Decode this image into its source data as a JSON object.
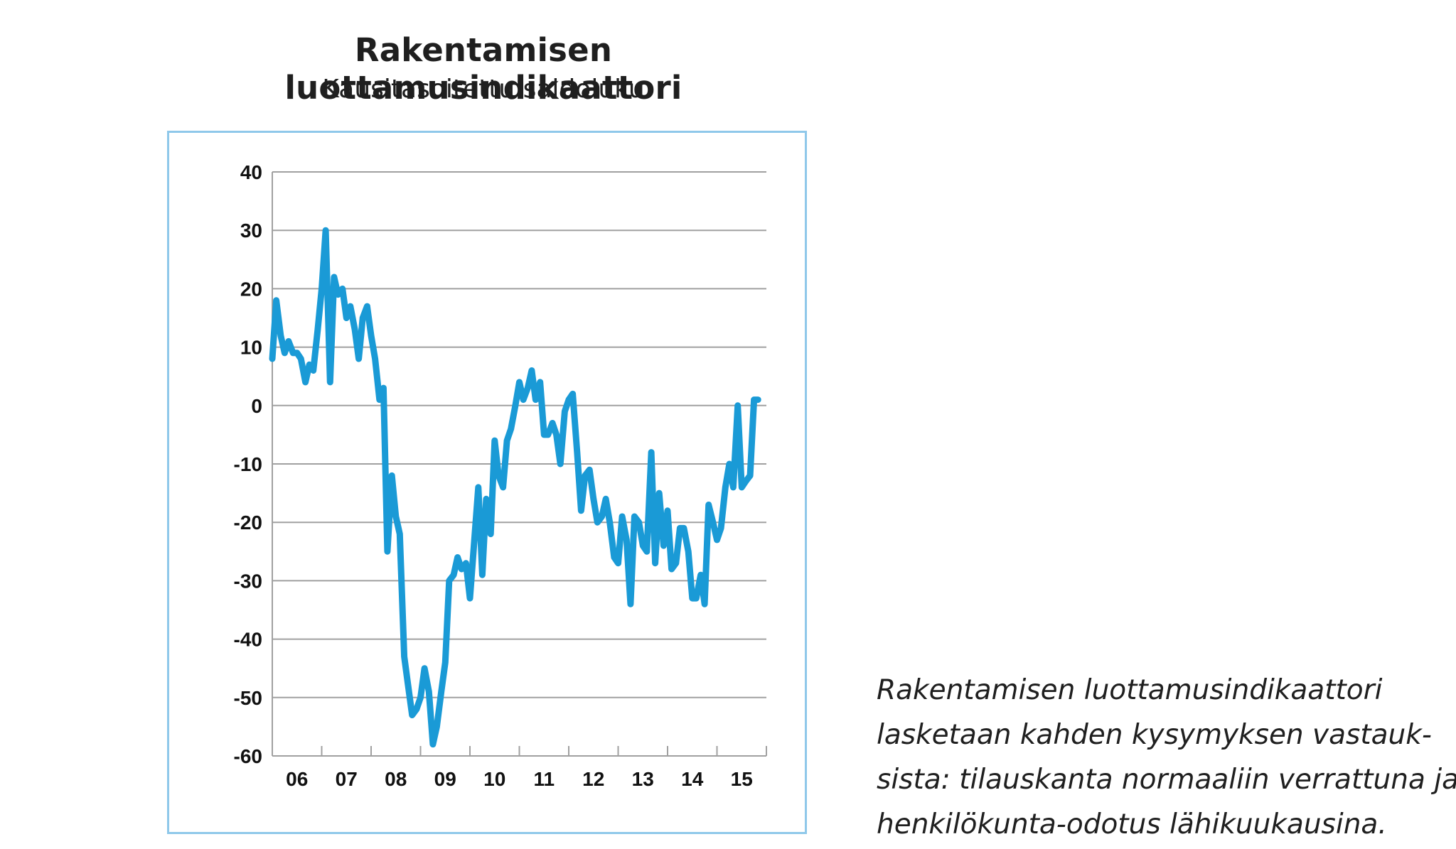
{
  "title": "Rakentamisen luottamusindikaattori",
  "subtitle": "Kausitasoitettu saldoluku",
  "caption_lines": [
    "Rakentamisen luottamusindikaattori",
    "lasketaan kahden kysymyksen vastauk-",
    "sista: tilauskanta normaaliin verrattuna ja",
    "henkilökunta-odotus lähikuukausina."
  ],
  "colors": {
    "line": "#1a9ad6",
    "grid": "#a0a0a0",
    "panel_border": "#8fc8ea"
  },
  "chart_data": {
    "type": "line",
    "title": "Rakentamisen luottamusindikaattori",
    "subtitle": "Kausitasoitettu saldoluku",
    "xlabel": "",
    "ylabel": "",
    "ylim": [
      -60,
      40
    ],
    "yticks": [
      40,
      30,
      20,
      10,
      0,
      -10,
      -20,
      -30,
      -40,
      -50,
      -60
    ],
    "xlim": [
      2006.0,
      2016.0
    ],
    "xtick_labels": [
      "06",
      "07",
      "08",
      "09",
      "10",
      "11",
      "12",
      "13",
      "14",
      "15"
    ],
    "grid": true,
    "series": [
      {
        "color": "#1a9ad6",
        "points": [
          [
            2006.0,
            8
          ],
          [
            2006.08,
            18
          ],
          [
            2006.17,
            12
          ],
          [
            2006.25,
            9
          ],
          [
            2006.33,
            11
          ],
          [
            2006.42,
            9
          ],
          [
            2006.5,
            9
          ],
          [
            2006.58,
            8
          ],
          [
            2006.67,
            4
          ],
          [
            2006.75,
            7
          ],
          [
            2006.83,
            6
          ],
          [
            2006.92,
            13
          ],
          [
            2007.0,
            20
          ],
          [
            2007.08,
            30
          ],
          [
            2007.17,
            4
          ],
          [
            2007.25,
            22
          ],
          [
            2007.33,
            19
          ],
          [
            2007.42,
            20
          ],
          [
            2007.5,
            15
          ],
          [
            2007.58,
            17
          ],
          [
            2007.67,
            13
          ],
          [
            2007.75,
            8
          ],
          [
            2007.83,
            15
          ],
          [
            2007.92,
            17
          ],
          [
            2008.0,
            12
          ],
          [
            2008.08,
            8
          ],
          [
            2008.17,
            1
          ],
          [
            2008.25,
            3
          ],
          [
            2008.33,
            -25
          ],
          [
            2008.42,
            -12
          ],
          [
            2008.5,
            -19
          ],
          [
            2008.58,
            -22
          ],
          [
            2008.67,
            -43
          ],
          [
            2008.75,
            -48
          ],
          [
            2008.83,
            -53
          ],
          [
            2008.92,
            -52
          ],
          [
            2009.0,
            -50
          ],
          [
            2009.08,
            -45
          ],
          [
            2009.17,
            -49
          ],
          [
            2009.25,
            -58
          ],
          [
            2009.33,
            -55
          ],
          [
            2009.42,
            -49
          ],
          [
            2009.5,
            -44
          ],
          [
            2009.58,
            -30
          ],
          [
            2009.67,
            -29
          ],
          [
            2009.75,
            -26
          ],
          [
            2009.83,
            -28
          ],
          [
            2009.92,
            -27
          ],
          [
            2010.0,
            -33
          ],
          [
            2010.08,
            -24
          ],
          [
            2010.17,
            -14
          ],
          [
            2010.25,
            -29
          ],
          [
            2010.33,
            -16
          ],
          [
            2010.42,
            -22
          ],
          [
            2010.5,
            -6
          ],
          [
            2010.58,
            -12
          ],
          [
            2010.67,
            -14
          ],
          [
            2010.75,
            -6
          ],
          [
            2010.83,
            -4
          ],
          [
            2010.92,
            0
          ],
          [
            2011.0,
            4
          ],
          [
            2011.08,
            1
          ],
          [
            2011.17,
            3
          ],
          [
            2011.25,
            6
          ],
          [
            2011.33,
            1
          ],
          [
            2011.42,
            4
          ],
          [
            2011.5,
            -5
          ],
          [
            2011.58,
            -5
          ],
          [
            2011.67,
            -3
          ],
          [
            2011.75,
            -5
          ],
          [
            2011.83,
            -10
          ],
          [
            2011.92,
            -1
          ],
          [
            2012.0,
            1
          ],
          [
            2012.08,
            2
          ],
          [
            2012.17,
            -8
          ],
          [
            2012.25,
            -18
          ],
          [
            2012.33,
            -12
          ],
          [
            2012.42,
            -11
          ],
          [
            2012.5,
            -16
          ],
          [
            2012.58,
            -20
          ],
          [
            2012.67,
            -19
          ],
          [
            2012.75,
            -16
          ],
          [
            2012.83,
            -20
          ],
          [
            2012.92,
            -26
          ],
          [
            2013.0,
            -27
          ],
          [
            2013.08,
            -19
          ],
          [
            2013.17,
            -23
          ],
          [
            2013.25,
            -34
          ],
          [
            2013.33,
            -19
          ],
          [
            2013.42,
            -20
          ],
          [
            2013.5,
            -24
          ],
          [
            2013.58,
            -25
          ],
          [
            2013.67,
            -8
          ],
          [
            2013.75,
            -27
          ],
          [
            2013.83,
            -15
          ],
          [
            2013.92,
            -24
          ],
          [
            2014.0,
            -18
          ],
          [
            2014.08,
            -28
          ],
          [
            2014.17,
            -27
          ],
          [
            2014.25,
            -21
          ],
          [
            2014.33,
            -21
          ],
          [
            2014.42,
            -25
          ],
          [
            2014.5,
            -33
          ],
          [
            2014.58,
            -33
          ],
          [
            2014.67,
            -29
          ],
          [
            2014.75,
            -34
          ],
          [
            2014.83,
            -17
          ],
          [
            2014.92,
            -20
          ],
          [
            2015.0,
            -23
          ],
          [
            2015.08,
            -21
          ],
          [
            2015.17,
            -14
          ],
          [
            2015.25,
            -10
          ],
          [
            2015.33,
            -14
          ],
          [
            2015.42,
            0
          ],
          [
            2015.5,
            -14
          ],
          [
            2015.58,
            -13
          ],
          [
            2015.67,
            -12
          ],
          [
            2015.75,
            1
          ],
          [
            2015.83,
            1
          ]
        ]
      }
    ]
  }
}
